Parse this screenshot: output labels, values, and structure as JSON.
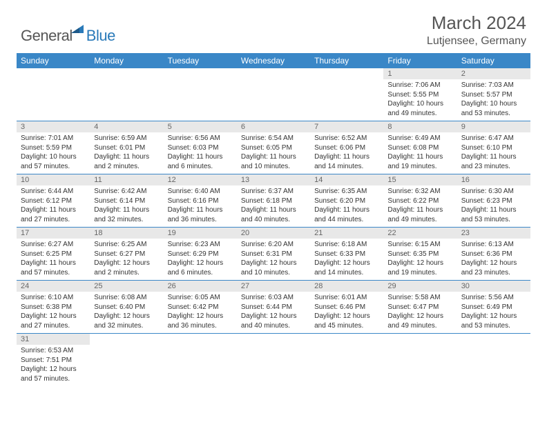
{
  "logo": {
    "text1": "General",
    "text2": "Blue"
  },
  "title": "March 2024",
  "location": "Lutjensee, Germany",
  "colors": {
    "header_bg": "#3a87c7",
    "header_text": "#ffffff",
    "daynum_bg": "#e8e8e8",
    "daynum_text": "#666666",
    "body_text": "#333333",
    "rule": "#3a87c7",
    "logo_gray": "#555555",
    "logo_blue": "#2a7ab9"
  },
  "weekdays": [
    "Sunday",
    "Monday",
    "Tuesday",
    "Wednesday",
    "Thursday",
    "Friday",
    "Saturday"
  ],
  "weeks": [
    [
      null,
      null,
      null,
      null,
      null,
      {
        "n": "1",
        "sr": "7:06 AM",
        "ss": "5:55 PM",
        "dl": "10 hours and 49 minutes."
      },
      {
        "n": "2",
        "sr": "7:03 AM",
        "ss": "5:57 PM",
        "dl": "10 hours and 53 minutes."
      }
    ],
    [
      {
        "n": "3",
        "sr": "7:01 AM",
        "ss": "5:59 PM",
        "dl": "10 hours and 57 minutes."
      },
      {
        "n": "4",
        "sr": "6:59 AM",
        "ss": "6:01 PM",
        "dl": "11 hours and 2 minutes."
      },
      {
        "n": "5",
        "sr": "6:56 AM",
        "ss": "6:03 PM",
        "dl": "11 hours and 6 minutes."
      },
      {
        "n": "6",
        "sr": "6:54 AM",
        "ss": "6:05 PM",
        "dl": "11 hours and 10 minutes."
      },
      {
        "n": "7",
        "sr": "6:52 AM",
        "ss": "6:06 PM",
        "dl": "11 hours and 14 minutes."
      },
      {
        "n": "8",
        "sr": "6:49 AM",
        "ss": "6:08 PM",
        "dl": "11 hours and 19 minutes."
      },
      {
        "n": "9",
        "sr": "6:47 AM",
        "ss": "6:10 PM",
        "dl": "11 hours and 23 minutes."
      }
    ],
    [
      {
        "n": "10",
        "sr": "6:44 AM",
        "ss": "6:12 PM",
        "dl": "11 hours and 27 minutes."
      },
      {
        "n": "11",
        "sr": "6:42 AM",
        "ss": "6:14 PM",
        "dl": "11 hours and 32 minutes."
      },
      {
        "n": "12",
        "sr": "6:40 AM",
        "ss": "6:16 PM",
        "dl": "11 hours and 36 minutes."
      },
      {
        "n": "13",
        "sr": "6:37 AM",
        "ss": "6:18 PM",
        "dl": "11 hours and 40 minutes."
      },
      {
        "n": "14",
        "sr": "6:35 AM",
        "ss": "6:20 PM",
        "dl": "11 hours and 44 minutes."
      },
      {
        "n": "15",
        "sr": "6:32 AM",
        "ss": "6:22 PM",
        "dl": "11 hours and 49 minutes."
      },
      {
        "n": "16",
        "sr": "6:30 AM",
        "ss": "6:23 PM",
        "dl": "11 hours and 53 minutes."
      }
    ],
    [
      {
        "n": "17",
        "sr": "6:27 AM",
        "ss": "6:25 PM",
        "dl": "11 hours and 57 minutes."
      },
      {
        "n": "18",
        "sr": "6:25 AM",
        "ss": "6:27 PM",
        "dl": "12 hours and 2 minutes."
      },
      {
        "n": "19",
        "sr": "6:23 AM",
        "ss": "6:29 PM",
        "dl": "12 hours and 6 minutes."
      },
      {
        "n": "20",
        "sr": "6:20 AM",
        "ss": "6:31 PM",
        "dl": "12 hours and 10 minutes."
      },
      {
        "n": "21",
        "sr": "6:18 AM",
        "ss": "6:33 PM",
        "dl": "12 hours and 14 minutes."
      },
      {
        "n": "22",
        "sr": "6:15 AM",
        "ss": "6:35 PM",
        "dl": "12 hours and 19 minutes."
      },
      {
        "n": "23",
        "sr": "6:13 AM",
        "ss": "6:36 PM",
        "dl": "12 hours and 23 minutes."
      }
    ],
    [
      {
        "n": "24",
        "sr": "6:10 AM",
        "ss": "6:38 PM",
        "dl": "12 hours and 27 minutes."
      },
      {
        "n": "25",
        "sr": "6:08 AM",
        "ss": "6:40 PM",
        "dl": "12 hours and 32 minutes."
      },
      {
        "n": "26",
        "sr": "6:05 AM",
        "ss": "6:42 PM",
        "dl": "12 hours and 36 minutes."
      },
      {
        "n": "27",
        "sr": "6:03 AM",
        "ss": "6:44 PM",
        "dl": "12 hours and 40 minutes."
      },
      {
        "n": "28",
        "sr": "6:01 AM",
        "ss": "6:46 PM",
        "dl": "12 hours and 45 minutes."
      },
      {
        "n": "29",
        "sr": "5:58 AM",
        "ss": "6:47 PM",
        "dl": "12 hours and 49 minutes."
      },
      {
        "n": "30",
        "sr": "5:56 AM",
        "ss": "6:49 PM",
        "dl": "12 hours and 53 minutes."
      }
    ],
    [
      {
        "n": "31",
        "sr": "6:53 AM",
        "ss": "7:51 PM",
        "dl": "12 hours and 57 minutes."
      },
      null,
      null,
      null,
      null,
      null,
      null
    ]
  ],
  "labels": {
    "sunrise": "Sunrise:",
    "sunset": "Sunset:",
    "daylight": "Daylight:"
  }
}
